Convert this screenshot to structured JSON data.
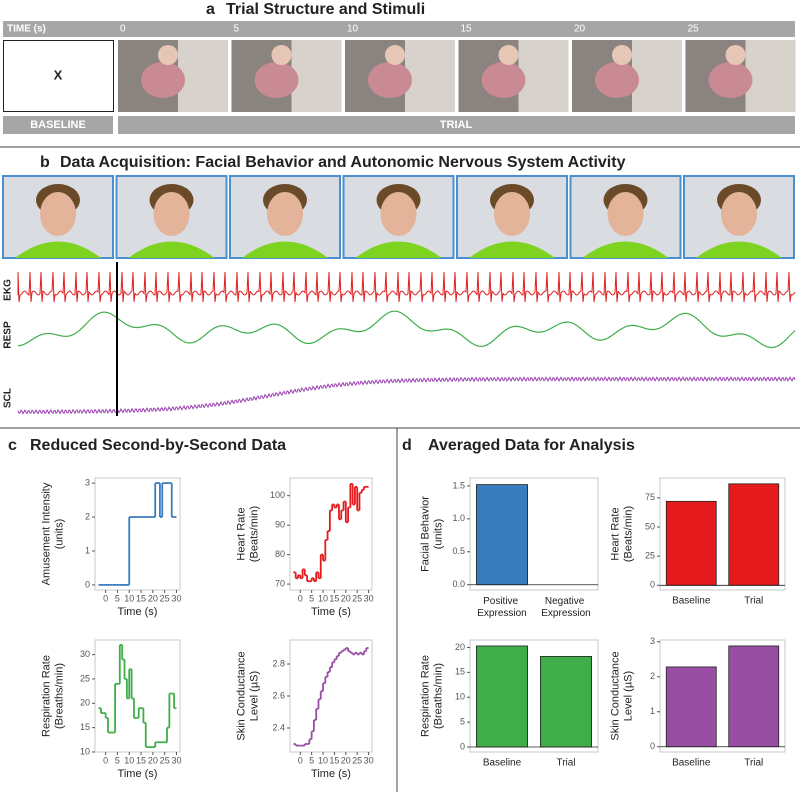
{
  "panels": {
    "a": {
      "letter": "a",
      "title": "Trial Structure and Stimuli",
      "time_label": "TIME (s)",
      "time_ticks": [
        0,
        5,
        10,
        15,
        20,
        25
      ],
      "baseline_mark": "X",
      "baseline_label": "BASELINE",
      "trial_label": "TRIAL"
    },
    "b": {
      "letter": "b",
      "title": "Data Acquisition: Facial Behavior and Autonomic Nervous System Activity",
      "signals": [
        "EKG",
        "RESP",
        "SCL"
      ]
    },
    "c": {
      "letter": "c",
      "title": "Reduced Second-by-Second Data"
    },
    "d": {
      "letter": "d",
      "title": "Averaged Data for Analysis"
    }
  },
  "chart_data": [
    {
      "type": "line",
      "step": true,
      "ylabel": [
        "Amusement Intensity",
        "(units)"
      ],
      "xlabel": "Time (s)",
      "color": "#3a7dbf",
      "x": [
        -3,
        -2,
        -1,
        0,
        1,
        2,
        3,
        4,
        5,
        6,
        7,
        8,
        9,
        10,
        11,
        12,
        13,
        14,
        15,
        16,
        17,
        18,
        19,
        20,
        21,
        22,
        23,
        24,
        25,
        26,
        27,
        28,
        29
      ],
      "values": [
        0,
        0,
        0,
        0,
        0,
        0,
        0,
        0,
        0,
        0,
        0,
        0,
        0,
        2,
        2,
        2,
        2,
        2,
        2,
        2,
        2,
        2,
        2,
        2,
        3,
        3,
        2,
        3,
        3,
        3,
        3,
        2,
        2
      ],
      "xlim": [
        -4.5,
        31.5
      ],
      "xticks": [
        0,
        5,
        10,
        15,
        20,
        25,
        30
      ],
      "ylim": [
        -0.15,
        3.15
      ],
      "yticks": [
        0,
        1,
        2,
        3
      ]
    },
    {
      "type": "line",
      "step": true,
      "ylabel": [
        "Heart Rate",
        "(Beats/min)"
      ],
      "xlabel": "Time (s)",
      "color": "#e41a1c",
      "x": [
        -3,
        -2,
        -1,
        0,
        1,
        2,
        3,
        4,
        5,
        6,
        7,
        8,
        9,
        10,
        11,
        12,
        13,
        14,
        15,
        16,
        17,
        18,
        19,
        20,
        21,
        22,
        23,
        24,
        25,
        26,
        27,
        28,
        29
      ],
      "values": [
        74,
        72,
        73,
        72,
        75,
        73,
        71,
        71,
        72,
        71,
        74,
        72,
        80,
        78,
        85,
        88,
        95,
        97,
        96,
        97,
        92,
        95,
        98,
        91,
        96,
        104,
        97,
        103,
        95,
        101,
        102,
        103,
        103
      ],
      "xlim": [
        -4.5,
        31.5
      ],
      "xticks": [
        0,
        5,
        10,
        15,
        20,
        25,
        30
      ],
      "ylim": [
        68,
        106
      ],
      "yticks": [
        70,
        80,
        90,
        100
      ]
    },
    {
      "type": "line",
      "step": true,
      "ylabel": [
        "Respiration Rate",
        "(Breaths/min)"
      ],
      "xlabel": "Time (s)",
      "color": "#3fae49",
      "x": [
        -3,
        -2,
        -1,
        0,
        1,
        2,
        3,
        4,
        5,
        6,
        7,
        8,
        9,
        10,
        11,
        12,
        13,
        14,
        15,
        16,
        17,
        18,
        19,
        20,
        21,
        22,
        23,
        24,
        25,
        26,
        27,
        28,
        29
      ],
      "values": [
        19,
        18,
        18,
        17,
        14,
        14,
        14,
        24,
        24,
        32,
        29,
        25,
        21,
        27,
        21,
        17,
        17,
        19,
        19,
        16,
        11,
        11,
        11,
        11,
        12,
        12,
        12,
        12,
        12,
        15,
        22,
        22,
        19
      ],
      "xlim": [
        -4.5,
        31.5
      ],
      "xticks": [
        0,
        5,
        10,
        15,
        20,
        25,
        30
      ],
      "ylim": [
        10,
        33
      ],
      "yticks": [
        10,
        15,
        20,
        25,
        30
      ]
    },
    {
      "type": "line",
      "step": true,
      "ylabel": [
        "Skin Conductance",
        "Level (µS)"
      ],
      "xlabel": "Time (s)",
      "color": "#984ea3",
      "x": [
        -3,
        -2,
        -1,
        0,
        1,
        2,
        3,
        4,
        5,
        6,
        7,
        8,
        9,
        10,
        11,
        12,
        13,
        14,
        15,
        16,
        17,
        18,
        19,
        20,
        21,
        22,
        23,
        24,
        25,
        26,
        27,
        28,
        29
      ],
      "values": [
        2.3,
        2.29,
        2.29,
        2.29,
        2.29,
        2.3,
        2.3,
        2.33,
        2.38,
        2.45,
        2.52,
        2.58,
        2.63,
        2.68,
        2.72,
        2.75,
        2.78,
        2.81,
        2.83,
        2.85,
        2.87,
        2.88,
        2.89,
        2.9,
        2.88,
        2.87,
        2.86,
        2.87,
        2.86,
        2.87,
        2.86,
        2.88,
        2.9
      ],
      "xlim": [
        -4.5,
        31.5
      ],
      "xticks": [
        0,
        5,
        10,
        15,
        20,
        25,
        30
      ],
      "ylim": [
        2.25,
        2.95
      ],
      "yticks": [
        2.4,
        2.6,
        2.8
      ]
    },
    {
      "type": "bar",
      "ylabel": [
        "Facial Behavior",
        "(units)"
      ],
      "color": "#3a7dbf",
      "categories": [
        "Positive Expression",
        "Negative Expression"
      ],
      "values": [
        1.52,
        0
      ],
      "ylim": [
        -0.08,
        1.62
      ],
      "yticks": [
        {
          "value": 0,
          "label": "0.0"
        },
        {
          "value": 0.5,
          "label": "0.5"
        },
        {
          "value": 1,
          "label": "1.0"
        },
        {
          "value": 1.5,
          "label": "1.5"
        }
      ]
    },
    {
      "type": "bar",
      "ylabel": [
        "Heart Rate",
        "(Beats/min)"
      ],
      "color": "#e41a1c",
      "categories": [
        "Baseline",
        "Trial"
      ],
      "values": [
        72,
        87
      ],
      "ylim": [
        -4,
        92
      ],
      "yticks": [
        0,
        25,
        50,
        75
      ]
    },
    {
      "type": "bar",
      "ylabel": [
        "Respiration Rate",
        "(Breaths/min)"
      ],
      "color": "#3fae49",
      "categories": [
        "Baseline",
        "Trial"
      ],
      "values": [
        20.3,
        18.2
      ],
      "ylim": [
        -1,
        21.5
      ],
      "yticks": [
        0,
        5,
        10,
        15,
        20
      ]
    },
    {
      "type": "bar",
      "ylabel": [
        "Skin Conductance",
        "Level (µS)"
      ],
      "color": "#984ea3",
      "categories": [
        "Baseline",
        "Trial"
      ],
      "values": [
        2.28,
        2.88
      ],
      "ylim": [
        -0.15,
        3.05
      ],
      "yticks": [
        0,
        1,
        2,
        3
      ]
    }
  ]
}
